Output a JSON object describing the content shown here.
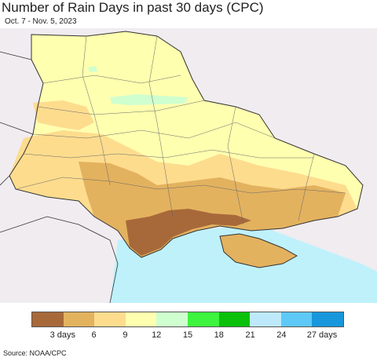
{
  "title": "Number of Rain Days in past 30 days (CPC)",
  "subtitle": "Oct. 7 - Nov. 5, 2023",
  "source": "Source: NOAA/CPC",
  "legend": {
    "colors": [
      "#a8693a",
      "#e3b25f",
      "#fddc8e",
      "#ffffb0",
      "#cfffcf",
      "#3ef43e",
      "#0cc10c",
      "#bde9fb",
      "#5ec8f7",
      "#1897dd"
    ],
    "tick_labels": [
      "3 days",
      "6",
      "9",
      "12",
      "15",
      "18",
      "21",
      "24",
      "27 days"
    ]
  },
  "map": {
    "sea_color": "#bff1fb",
    "land_outside_color": "#f0ecf0",
    "border_color": "#333333"
  }
}
